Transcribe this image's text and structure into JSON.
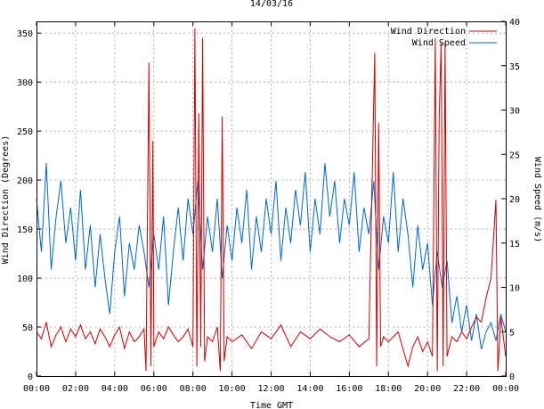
{
  "chart_data": {
    "type": "line",
    "title": "14/03/16",
    "xlabel": "Time GMT",
    "ylabel_left": "Wind Direction (Degrees)",
    "ylabel_right": "Wind Speed (m/s)",
    "x_ticks": [
      "00:00",
      "02:00",
      "04:00",
      "06:00",
      "08:00",
      "10:00",
      "12:00",
      "14:00",
      "16:00",
      "18:00",
      "20:00",
      "22:00",
      "00:00"
    ],
    "y_left_ticks": [
      "0",
      "50",
      "100",
      "150",
      "200",
      "250",
      "300",
      "350"
    ],
    "y_right_ticks": [
      "0",
      "5",
      "10",
      "15",
      "20",
      "25",
      "30",
      "35",
      "40"
    ],
    "xlim_hours": [
      0,
      24
    ],
    "ylim_left": [
      0,
      362
    ],
    "ylim_right": [
      0,
      40
    ],
    "grid": true,
    "legend_position": "top-right",
    "series": [
      {
        "name": "Wind Direction",
        "axis": "left",
        "color": "#cc0000",
        "x_hours": [
          0.0,
          0.25,
          0.5,
          0.75,
          1.0,
          1.25,
          1.5,
          1.75,
          2.0,
          2.25,
          2.5,
          2.75,
          3.0,
          3.25,
          3.5,
          3.75,
          4.0,
          4.25,
          4.5,
          4.75,
          5.0,
          5.25,
          5.5,
          5.6,
          5.75,
          5.85,
          5.95,
          6.0,
          6.25,
          6.5,
          6.75,
          7.0,
          7.25,
          7.5,
          7.75,
          8.0,
          8.1,
          8.2,
          8.3,
          8.4,
          8.5,
          8.6,
          8.75,
          9.0,
          9.25,
          9.4,
          9.5,
          9.6,
          9.75,
          10.0,
          10.5,
          11.0,
          11.5,
          12.0,
          12.5,
          13.0,
          13.5,
          14.0,
          14.5,
          15.0,
          15.5,
          16.0,
          16.5,
          17.0,
          17.3,
          17.4,
          17.5,
          17.6,
          17.75,
          18.0,
          18.5,
          19.0,
          19.25,
          19.5,
          19.75,
          20.0,
          20.25,
          20.4,
          20.5,
          20.6,
          20.7,
          20.8,
          20.9,
          21.0,
          21.25,
          21.5,
          21.75,
          22.0,
          22.25,
          22.5,
          22.75,
          23.0,
          23.25,
          23.5,
          23.6,
          23.75,
          24.0
        ],
        "values": [
          45,
          38,
          55,
          30,
          42,
          50,
          35,
          48,
          40,
          52,
          38,
          45,
          33,
          48,
          40,
          30,
          42,
          50,
          28,
          45,
          35,
          40,
          48,
          5,
          320,
          10,
          240,
          30,
          45,
          38,
          50,
          42,
          35,
          40,
          48,
          30,
          355,
          10,
          268,
          30,
          345,
          15,
          40,
          35,
          50,
          5,
          265,
          15,
          40,
          35,
          42,
          28,
          45,
          38,
          52,
          30,
          45,
          38,
          48,
          40,
          35,
          42,
          30,
          38,
          330,
          10,
          258,
          30,
          40,
          35,
          45,
          10,
          30,
          40,
          25,
          35,
          20,
          345,
          5,
          265,
          340,
          10,
          340,
          20,
          40,
          35,
          45,
          38,
          50,
          60,
          55,
          80,
          100,
          180,
          5,
          60,
          20
        ]
      },
      {
        "name": "Wind Speed",
        "axis": "right",
        "color": "#0066cc",
        "x_hours": [
          0.0,
          0.25,
          0.5,
          0.75,
          1.0,
          1.25,
          1.5,
          1.75,
          2.0,
          2.25,
          2.5,
          2.75,
          3.0,
          3.25,
          3.5,
          3.75,
          4.0,
          4.25,
          4.5,
          4.75,
          5.0,
          5.25,
          5.5,
          5.75,
          6.0,
          6.25,
          6.5,
          6.75,
          7.0,
          7.25,
          7.5,
          7.75,
          8.0,
          8.25,
          8.5,
          8.75,
          9.0,
          9.25,
          9.5,
          9.75,
          10.0,
          10.25,
          10.5,
          10.75,
          11.0,
          11.25,
          11.5,
          11.75,
          12.0,
          12.25,
          12.5,
          12.75,
          13.0,
          13.25,
          13.5,
          13.75,
          14.0,
          14.25,
          14.5,
          14.75,
          15.0,
          15.25,
          15.5,
          15.75,
          16.0,
          16.25,
          16.5,
          16.75,
          17.0,
          17.25,
          17.5,
          17.75,
          18.0,
          18.25,
          18.5,
          18.75,
          19.0,
          19.25,
          19.5,
          19.75,
          20.0,
          20.25,
          20.5,
          20.75,
          21.0,
          21.25,
          21.5,
          21.75,
          22.0,
          22.25,
          22.5,
          22.75,
          23.0,
          23.25,
          23.5,
          23.75,
          24.0
        ],
        "values": [
          20,
          14,
          24,
          12,
          18,
          22,
          15,
          19,
          13,
          21,
          12,
          17,
          10,
          16,
          11,
          7,
          14,
          18,
          9,
          15,
          12,
          17,
          14,
          10,
          16,
          12,
          18,
          8,
          14,
          19,
          13,
          20,
          16,
          22,
          12,
          18,
          14,
          20,
          11,
          17,
          13,
          19,
          15,
          21,
          12,
          18,
          14,
          20,
          16,
          22,
          13,
          19,
          15,
          21,
          17,
          23,
          14,
          20,
          16,
          24,
          18,
          22,
          15,
          20,
          17,
          23,
          14,
          19,
          16,
          22,
          12,
          18,
          15,
          23,
          14,
          20,
          16,
          10,
          17,
          12,
          15,
          8,
          14,
          10,
          13,
          6,
          9,
          5,
          8,
          4,
          7,
          3,
          5,
          6,
          4,
          7,
          5
        ]
      }
    ]
  }
}
